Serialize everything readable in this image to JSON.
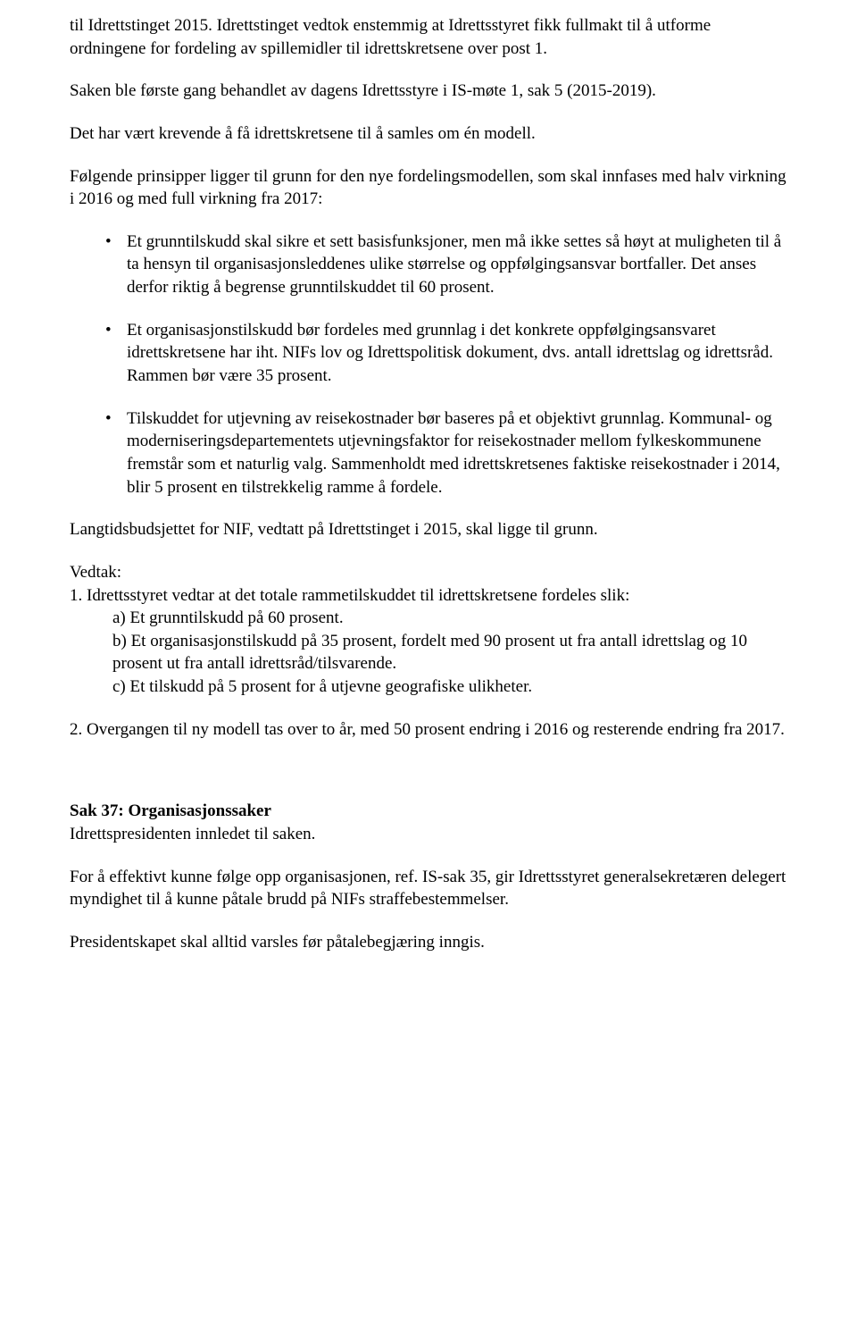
{
  "para1": "til Idrettstinget 2015. Idrettstinget vedtok enstemmig at Idrettsstyret fikk fullmakt til å utforme ordningene for fordeling av spillemidler til idrettskretsene over post 1.",
  "para2": "Saken ble første gang behandlet av dagens Idrettsstyre i IS-møte 1, sak 5 (2015-2019).",
  "para3": "Det har vært krevende å få idrettskretsene til å samles om én modell.",
  "para4": "Følgende prinsipper ligger til grunn for den nye fordelingsmodellen, som skal innfases med halv virkning i 2016 og med full virkning fra 2017:",
  "bullets": [
    "Et grunntilskudd skal sikre et sett basisfunksjoner, men må ikke settes så høyt at muligheten til å ta hensyn til organisasjonsleddenes ulike størrelse og oppfølgingsansvar bortfaller. Det anses derfor riktig å begrense grunntilskuddet til 60 prosent.",
    "Et organisasjonstilskudd bør fordeles med grunnlag i det konkrete oppfølgingsansvaret idrettskretsene har iht. NIFs lov og Idrettspolitisk dokument, dvs. antall idrettslag og idrettsråd. Rammen bør være 35 prosent.",
    "Tilskuddet for utjevning av reisekostnader bør baseres på et objektivt grunnlag. Kommunal- og moderniseringsdepartementets utjevningsfaktor for reisekostnader mellom fylkeskommunene fremstår som et naturlig valg. Sammenholdt med idrettskretsenes faktiske reisekostnader i 2014, blir 5 prosent en tilstrekkelig ramme å fordele."
  ],
  "para5": "Langtidsbudsjettet for NIF, vedtatt på Idrettstinget i 2015, skal ligge til grunn.",
  "vedtak_label": "Vedtak:",
  "vedtak1_intro": "1. Idrettsstyret vedtar at det totale rammetilskuddet til idrettskretsene fordeles slik:",
  "vedtak1_a": "a) Et grunntilskudd på 60 prosent.",
  "vedtak1_b": "b) Et organisasjonstilskudd på 35 prosent, fordelt med 90 prosent ut fra antall idrettslag og 10 prosent ut fra antall idrettsråd/tilsvarende.",
  "vedtak1_c": "c) Et tilskudd på 5 prosent for å utjevne geografiske ulikheter.",
  "vedtak2": "2. Overgangen til ny modell tas over to år, med 50 prosent endring i 2016 og resterende endring fra 2017.",
  "sak37_title": "Sak 37: Organisasjonssaker",
  "sak37_line": "Idrettspresidenten innledet til saken.",
  "sak37_para": "For å effektivt kunne følge opp organisasjonen, ref. IS-sak 35, gir Idrettsstyret generalsekretæren delegert myndighet til å kunne påtale brudd på NIFs straffebestemmelser.",
  "sak37_last": "Presidentskapet skal alltid varsles før påtalebegjæring inngis."
}
